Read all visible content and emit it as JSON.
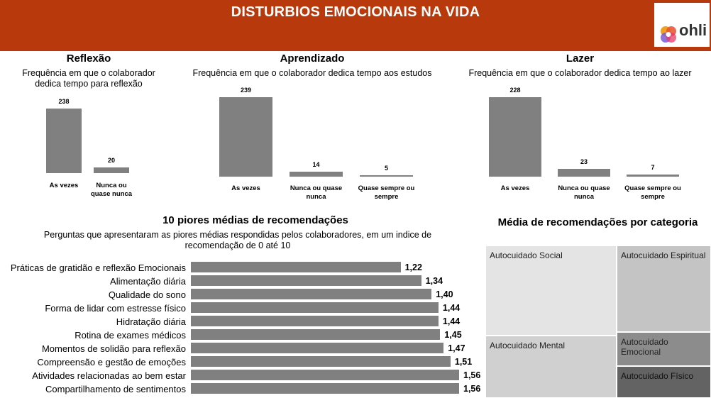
{
  "header": {
    "title": "DISTURBIOS EMOCIONAIS NA VIDA",
    "logo_text": "ohli"
  },
  "chart_data": [
    {
      "type": "bar",
      "title": "Reflexão",
      "subtitle": "Frequência em que o colaborador dedica tempo para reflexão",
      "categories": [
        "As vezes",
        "Nunca ou quase nunca"
      ],
      "values": [
        238,
        20
      ]
    },
    {
      "type": "bar",
      "title": "Aprendizado",
      "subtitle": "Frequência em que o colaborador dedica tempo aos estudos",
      "categories": [
        "As vezes",
        "Nunca ou quase nunca",
        "Quase sempre ou sempre"
      ],
      "values": [
        239,
        14,
        5
      ]
    },
    {
      "type": "bar",
      "title": "Lazer",
      "subtitle": "Frequência em que o colaborador dedica tempo ao lazer",
      "categories": [
        "As vezes",
        "Nunca ou quase nunca",
        "Quase sempre ou sempre"
      ],
      "values": [
        228,
        23,
        7
      ]
    },
    {
      "type": "bar",
      "orientation": "horizontal",
      "title": "10 piores médias de recomendações",
      "subtitle": "Perguntas que apresentaram as piores médias respondidas pelos colaboradores, em um indice de recomendação de 0 até 10",
      "categories": [
        "Práticas de gratidão e reflexão Emocionais",
        "Alimentação diária",
        "Qualidade do sono",
        "Forma de lidar com estresse físico",
        "Hidratação diária",
        "Rotina de exames médicos",
        "Momentos de solidão para reflexão",
        "Compreensão e gestão de emoções",
        "Atividades relacionadas ao bem estar",
        "Compartilhamento de sentimentos"
      ],
      "values": [
        1.22,
        1.34,
        1.4,
        1.44,
        1.44,
        1.45,
        1.47,
        1.51,
        1.56,
        1.56
      ],
      "value_labels": [
        "1,22",
        "1,34",
        "1,40",
        "1,44",
        "1,44",
        "1,45",
        "1,47",
        "1,51",
        "1,56",
        "1,56"
      ]
    },
    {
      "type": "treemap",
      "title": "Média de recomendações por categoria",
      "categories": [
        "Autocuidado Social",
        "Autocuidado Espiritual",
        "Autocuidado Mental",
        "Autocuidado Emocional",
        "Autocuidado Físico"
      ],
      "colors": [
        "#e4e4e4",
        "#c4c4c4",
        "#d0d0d0",
        "#8c8c8c",
        "#636363"
      ]
    }
  ],
  "colors": {
    "header": "#b8390c",
    "bar": "#808080"
  }
}
